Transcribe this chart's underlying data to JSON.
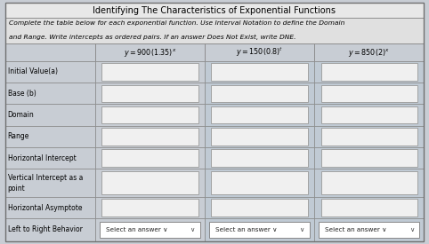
{
  "title": "Identifying The Characteristics of Exponential Functions",
  "instruction": "Complete the table below for each exponential function. Use Interval Notation to define the Domain\nand Range. Write intercepts as ordered pairs. If an answer Does Not Exist, write DNE.",
  "col_headers": [
    "$y = 900(1.35)^x$",
    "$y = 150(0.8)^t$",
    "$y = 850(2)^x$"
  ],
  "row_labels": [
    "Initial Value(a)",
    "Base (b)",
    "Domain",
    "Range",
    "Horizontal Intercept",
    "Vertical Intercept as a\npoint",
    "Horizontal Asymptote",
    "Left to Right Behavior"
  ],
  "bg_color": "#c8cdd4",
  "cell_bg_col1": "#c8cdd4",
  "cell_bg_col23": "#c0cad4",
  "input_bg": "#f0f0f0",
  "title_bg": "#e8e8e8",
  "instr_bg": "#e0e0e0",
  "header_bg": "#c8cdd4",
  "figsize": [
    4.82,
    2.75
  ],
  "dpi": 100
}
